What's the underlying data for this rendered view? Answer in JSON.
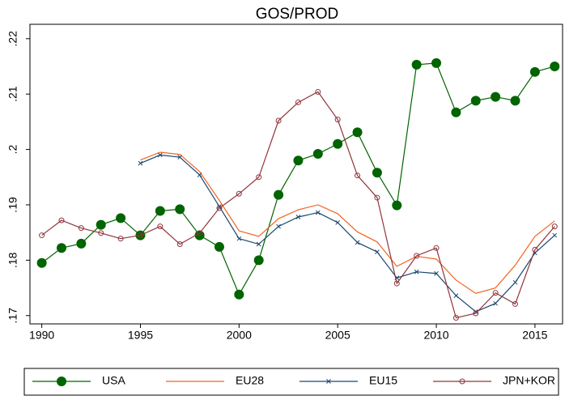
{
  "chart_data": {
    "type": "line",
    "title": "GOS/PROD",
    "x": [
      1990,
      1991,
      1992,
      1993,
      1994,
      1995,
      1996,
      1997,
      1998,
      1999,
      2000,
      2001,
      2002,
      2003,
      2004,
      2005,
      2006,
      2007,
      2008,
      2009,
      2010,
      2011,
      2012,
      2013,
      2014,
      2015,
      2016
    ],
    "xlim": [
      1989.4,
      2016.4
    ],
    "xticks": [
      1990,
      1995,
      2000,
      2005,
      2010,
      2015
    ],
    "ylim": [
      0.1685,
      0.2226
    ],
    "yticks": [
      {
        "value": 0.17,
        "label": ".17"
      },
      {
        "value": 0.18,
        "label": ".18"
      },
      {
        "value": 0.19,
        "label": ".19"
      },
      {
        "value": 0.2,
        "label": ".2"
      },
      {
        "value": 0.21,
        "label": ".21"
      },
      {
        "value": 0.22,
        "label": ".22"
      }
    ],
    "grid": false,
    "legend": "bottom",
    "series": [
      {
        "name": "USA",
        "color": "#006400",
        "marker": "dot",
        "values": [
          0.1795,
          0.1822,
          0.183,
          0.1864,
          0.1876,
          0.1845,
          0.1889,
          0.1892,
          0.1845,
          0.1824,
          0.1738,
          0.18,
          0.1918,
          0.198,
          0.1992,
          0.201,
          0.2031,
          0.1958,
          0.1899,
          0.2153,
          0.2156,
          0.2067,
          0.2088,
          0.2095,
          0.2088,
          0.214,
          0.215
        ]
      },
      {
        "name": "EU28",
        "color": "#f26522",
        "marker": "none",
        "values": [
          null,
          null,
          null,
          null,
          null,
          0.1981,
          0.1995,
          0.1991,
          0.196,
          0.1908,
          0.1853,
          0.1843,
          0.1875,
          0.1891,
          0.19,
          0.1884,
          0.1851,
          0.1833,
          0.1789,
          0.1807,
          0.1802,
          0.1764,
          0.174,
          0.175,
          0.1791,
          0.1843,
          0.1871
        ]
      },
      {
        "name": "EU15",
        "color": "#1a476f",
        "marker": "x",
        "values": [
          null,
          null,
          null,
          null,
          null,
          0.1975,
          0.199,
          0.1986,
          0.1954,
          0.1897,
          0.1839,
          0.1829,
          0.1861,
          0.1878,
          0.1886,
          0.1868,
          0.1832,
          0.1815,
          0.1768,
          0.1779,
          0.1776,
          0.1736,
          0.1707,
          0.1722,
          0.176,
          0.1813,
          0.1845
        ]
      },
      {
        "name": "JPN+KOR",
        "color": "#90353b",
        "marker": "hollow",
        "values": [
          0.1845,
          0.1872,
          0.1858,
          0.1849,
          0.1839,
          0.1845,
          0.1861,
          0.1829,
          0.1849,
          0.1894,
          0.192,
          0.195,
          0.2052,
          0.2085,
          0.2104,
          0.2054,
          0.1953,
          0.1913,
          0.1758,
          0.1808,
          0.1822,
          0.1696,
          0.1704,
          0.1741,
          0.1721,
          0.1819,
          0.1861
        ]
      }
    ]
  }
}
